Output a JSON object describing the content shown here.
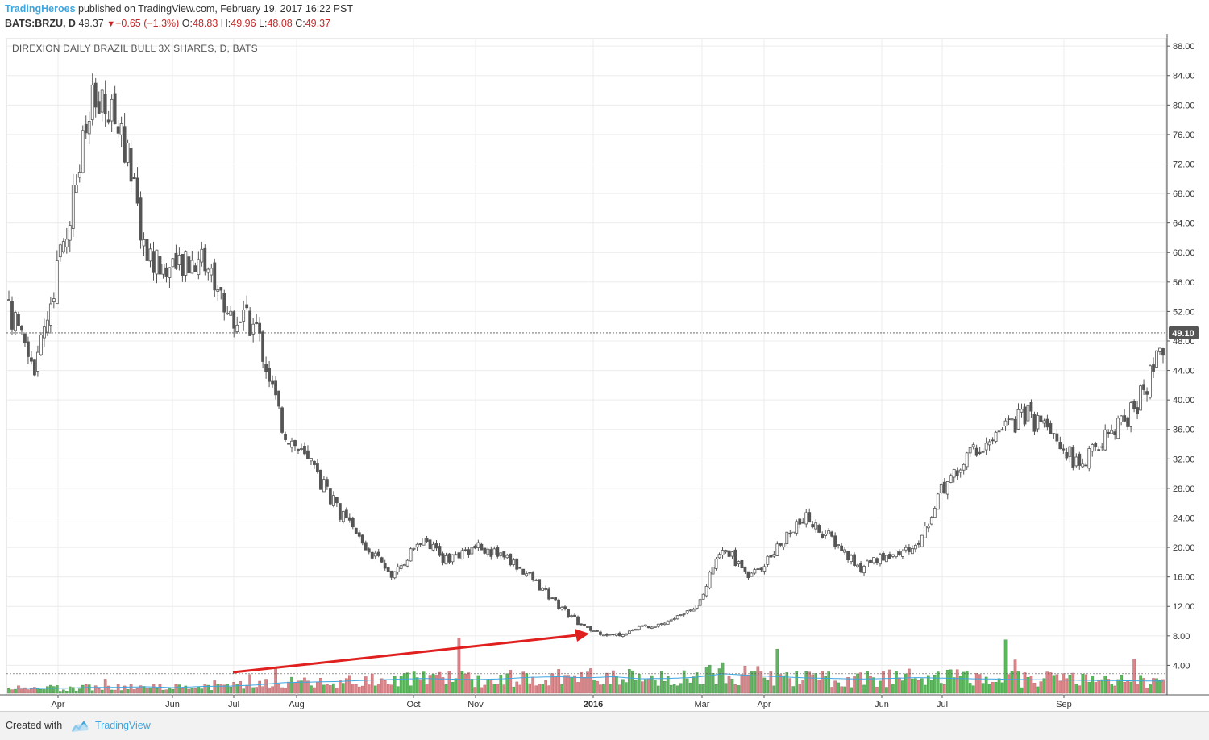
{
  "header": {
    "author": "TradingHeroes",
    "published_text": "published on TradingView.com, February 19, 2017 16:22 PST",
    "symbol": "BATS:BRZU, D",
    "last": "49.37",
    "change": "−0.65 (−1.3%)",
    "open_label": "O:",
    "open": "48.83",
    "high_label": "H:",
    "high": "49.96",
    "low_label": "L:",
    "low": "48.08",
    "close_label": "C:",
    "close": "49.37"
  },
  "footer": {
    "created_with": "Created with",
    "brand": "TradingView"
  },
  "colors": {
    "up_volume": "#5cb85c",
    "down_volume": "#d9868a",
    "candle": "#555555",
    "volume_ma": "#3ea6e0",
    "arrow": "#e0201f",
    "current_price_label_bg": "#555555"
  },
  "chart_data": {
    "type": "candlestick",
    "title": "DIREXION DAILY BRAZIL BULL 3X SHARES, D, BATS",
    "ylim": [
      0,
      89
    ],
    "y_ticks": [
      "4.00",
      "8.00",
      "12.00",
      "16.00",
      "20.00",
      "24.00",
      "28.00",
      "32.00",
      "36.00",
      "40.00",
      "44.00",
      "48.00",
      "52.00",
      "56.00",
      "60.00",
      "64.00",
      "68.00",
      "72.00",
      "76.00",
      "80.00",
      "84.00",
      "88.00"
    ],
    "x_tick_labels": [
      "Apr",
      "Jun",
      "Jul",
      "Aug",
      "Oct",
      "Nov",
      "2016",
      "Mar",
      "Apr",
      "Jun",
      "Jul",
      "Sep"
    ],
    "current_price": "49.10",
    "x": [
      "2015-03-06",
      "2015-03-20",
      "2015-04-03",
      "2015-04-17",
      "2015-05-01",
      "2015-05-15",
      "2015-05-29",
      "2015-06-12",
      "2015-06-26",
      "2015-07-10",
      "2015-07-24",
      "2015-08-07",
      "2015-08-21",
      "2015-09-04",
      "2015-09-18",
      "2015-10-02",
      "2015-10-16",
      "2015-10-30",
      "2015-11-13",
      "2015-11-27",
      "2015-12-11",
      "2015-12-25",
      "2016-01-08",
      "2016-01-22",
      "2016-02-05",
      "2016-02-19",
      "2016-03-04",
      "2016-03-18",
      "2016-04-01",
      "2016-04-15",
      "2016-04-29",
      "2016-05-13",
      "2016-05-27",
      "2016-06-10",
      "2016-06-24",
      "2016-07-08",
      "2016-07-22",
      "2016-08-05",
      "2016-08-19",
      "2016-09-02",
      "2016-09-16",
      "2016-09-30",
      "2016-10-14"
    ],
    "close": [
      52,
      44,
      62,
      80,
      78,
      60,
      57,
      60,
      52,
      50,
      36,
      31,
      25,
      20,
      16,
      21,
      18,
      20,
      19,
      16,
      12,
      9,
      8,
      9,
      10,
      12,
      20,
      16,
      20,
      24,
      21,
      17,
      19,
      20,
      28,
      33,
      35,
      38,
      35,
      31,
      35,
      39,
      47
    ],
    "volume_annotation": "arrow pointing up-right showing rising volume",
    "volume": [
      1.8,
      1.6,
      1.7,
      2.0,
      2.0,
      2.2,
      1.9,
      2.3,
      2.4,
      2.8,
      3.6,
      3.8,
      4.0,
      4.4,
      4.7,
      5.0,
      4.8,
      4.6,
      4.9,
      5.4,
      5.6,
      5.2,
      5.6,
      4.9,
      5.0,
      5.4,
      6.6,
      6.0,
      5.6,
      5.2,
      5.0,
      4.8,
      5.0,
      5.3,
      5.1,
      4.9,
      4.8,
      4.6,
      4.5,
      4.4,
      4.3,
      4.2,
      4.1
    ]
  }
}
